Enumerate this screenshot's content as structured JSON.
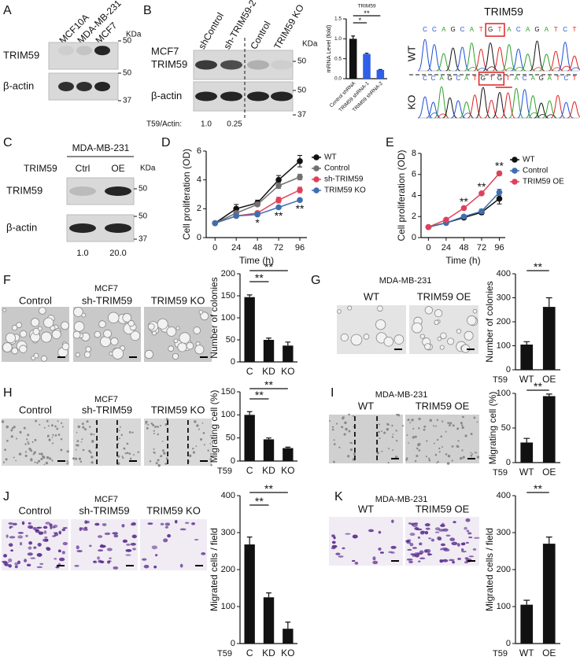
{
  "panel_labels": [
    "A",
    "B",
    "C",
    "D",
    "E",
    "F",
    "G",
    "H",
    "I",
    "J",
    "K"
  ],
  "blot_a": {
    "lanes": [
      "MCF10A",
      "MDA-MB-231",
      "MCF7"
    ],
    "kda": "KDa",
    "bands": [
      "TRIM59",
      "β-actin"
    ],
    "markers": [
      "50",
      "50",
      "37"
    ]
  },
  "blot_b": {
    "cell_line": "MCF7",
    "lanes": [
      "shControl",
      "sh-TRIM59-2",
      "Control",
      "TRIM59 KO"
    ],
    "kda": "KDa",
    "bands": [
      "TRIM59",
      "β-actin"
    ],
    "markers": [
      "50",
      "50",
      "37"
    ],
    "ratio_label": "T59/Actin:",
    "ratios": [
      "1.0",
      "0.25"
    ]
  },
  "blot_c": {
    "cell_line": "MDA-MB-231",
    "group_label": "TRIM59",
    "lanes": [
      "Ctrl",
      "OE"
    ],
    "kda": "KDa",
    "bands": [
      "TRIM59",
      "β-actin"
    ],
    "markers": [
      "50",
      "50",
      "37"
    ],
    "ratios": [
      "1.0",
      "20.0"
    ]
  },
  "sequencing": {
    "title": "TRIM59",
    "rows": [
      "WT",
      "KO"
    ],
    "wt_sequence": [
      "C",
      "C",
      "A",
      "G",
      "C",
      "A",
      "T",
      "G",
      "T",
      "A",
      "C",
      "A",
      "G",
      "A",
      "T",
      "C",
      "T"
    ],
    "ko_sequence": [
      "C",
      "C",
      "A",
      "G",
      "C",
      "A",
      "T",
      "G",
      "T",
      "G",
      "T",
      "A",
      "C",
      "A",
      "G",
      "A",
      "T",
      "C",
      "T"
    ]
  },
  "images": [
    {
      "cell_line": "MCF7",
      "conditions": [
        "Control",
        "sh-TRIM59",
        "TRIM59 KO"
      ]
    },
    {
      "cell_line": "MDA-MB-231",
      "conditions": [
        "WT",
        "TRIM59 OE"
      ]
    },
    {
      "cell_line": "MCF7",
      "conditions": [
        "Control",
        "sh-TRIM59",
        "TRIM59 KO"
      ]
    },
    {
      "cell_line": "MDA-MB-231",
      "conditions": [
        "WT",
        "TRIM59 OE"
      ]
    },
    {
      "cell_line": "MCF7",
      "conditions": [
        "Control",
        "sh-TRIM59",
        "TRIM59 KO"
      ]
    },
    {
      "cell_line": "MDA-MB-231",
      "conditions": [
        "WT",
        "TRIM59 OE"
      ]
    }
  ],
  "chart_data": [
    {
      "type": "bar",
      "title": "TRIM59",
      "ylabel": "mRNA Level (fold)",
      "categories": [
        "Control shRNA",
        "TRIM59 shRNA-1",
        "TRIM59 shRNA-2"
      ],
      "values": [
        1.0,
        0.62,
        0.22
      ],
      "errors": [
        0.07,
        0.02,
        0.01
      ],
      "colors": [
        "#111111",
        "#2f5ee8",
        "#2f5ee8"
      ],
      "ylim": [
        0,
        1.5
      ],
      "yticks": [
        {
          "value": 0,
          "label": "0.0"
        },
        0.5,
        {
          "value": 1,
          "label": "1.0"
        },
        1.5
      ],
      "rotate_labels": true,
      "annotations": [
        {
          "text": "*",
          "from": 0,
          "to": 1
        },
        {
          "text": "**",
          "from": 0,
          "to": 2
        }
      ]
    },
    {
      "type": "line",
      "ylabel": "Cell proliferation (OD)",
      "xlabel": "Time (h)",
      "x": [
        0,
        24,
        48,
        72,
        96
      ],
      "xlim": [
        -10,
        104
      ],
      "xticks": [
        0,
        24,
        48,
        72,
        96
      ],
      "ylim": [
        0,
        6
      ],
      "yticks": [
        0,
        2,
        4,
        6
      ],
      "legend": "right",
      "series": [
        {
          "name": "WT",
          "color": "#111111",
          "values": [
            1,
            2,
            2.4,
            4,
            5.3
          ],
          "errors": [
            0.05,
            0.3,
            0.2,
            0.3,
            0.4
          ]
        },
        {
          "name": "Control",
          "color": "#707070",
          "values": [
            1,
            1.7,
            2.3,
            3.6,
            4.2
          ],
          "errors": [
            0.05,
            0.1,
            0.1,
            0.2,
            0.2
          ]
        },
        {
          "name": "sh-TRIM59",
          "color": "#e0405a",
          "values": [
            1,
            1.5,
            1.7,
            2.6,
            3.3
          ],
          "errors": [
            0.05,
            0.1,
            0.1,
            0.2,
            0.2
          ]
        },
        {
          "name": "TRIM59 KO",
          "color": "#3d6fb0",
          "values": [
            1,
            1.5,
            1.6,
            2.1,
            2.6
          ],
          "errors": [
            0.05,
            0.1,
            0.1,
            0.1,
            0.1
          ]
        }
      ],
      "annotations": [
        {
          "text": "*",
          "x": 48
        },
        {
          "text": "**",
          "x": 72
        },
        {
          "text": "**",
          "x": 96
        }
      ],
      "annotation_side": "below"
    },
    {
      "type": "line",
      "ylabel": "Cell proliferation (OD)",
      "xlabel": "Time (h)",
      "x": [
        0,
        24,
        48,
        72,
        96
      ],
      "xlim": [
        -10,
        104
      ],
      "xticks": [
        0,
        24,
        48,
        72,
        96
      ],
      "ylim": [
        0,
        8
      ],
      "yticks": [
        0,
        2,
        4,
        6,
        8
      ],
      "legend": "right",
      "series": [
        {
          "name": "WT",
          "color": "#111111",
          "values": [
            1,
            1.4,
            1.9,
            2.4,
            3.7
          ],
          "errors": [
            0.05,
            0.1,
            0.1,
            0.2,
            0.5
          ]
        },
        {
          "name": "Control",
          "color": "#3d6fb0",
          "values": [
            1,
            1.4,
            2.0,
            2.5,
            4.3
          ],
          "errors": [
            0.05,
            0.1,
            0.1,
            0.2,
            0.3
          ]
        },
        {
          "name": "TRIM59 OE",
          "color": "#e0405a",
          "values": [
            1,
            1.7,
            2.8,
            4.2,
            6.1
          ],
          "errors": [
            0.05,
            0.1,
            0.1,
            0.1,
            0.2
          ]
        }
      ],
      "annotations": [
        {
          "text": "**",
          "x": 48
        },
        {
          "text": "**",
          "x": 72
        },
        {
          "text": "**",
          "x": 96
        }
      ],
      "annotation_side": "above"
    },
    {
      "type": "bar",
      "ylabel": "Number of colonies",
      "categories": [
        "C",
        "KD",
        "KO"
      ],
      "values": [
        147,
        50,
        37
      ],
      "errors": [
        5,
        4,
        8
      ],
      "color": "#111111",
      "ylim": [
        0,
        200
      ],
      "yticks": [
        0,
        50,
        100,
        150,
        200
      ],
      "annotations": [
        {
          "text": "**",
          "from": 0,
          "to": 1
        },
        {
          "text": "**",
          "from": 0,
          "to": 2
        }
      ]
    },
    {
      "type": "bar",
      "ylabel": "Number of colonies",
      "xlabel": "T59",
      "categories": [
        "WT",
        "OE"
      ],
      "values": [
        105,
        262
      ],
      "errors": [
        12,
        38
      ],
      "color": "#111111",
      "ylim": [
        0,
        400
      ],
      "yticks": [
        0,
        100,
        200,
        300,
        400
      ],
      "annotations": [
        {
          "text": "**",
          "from": 0,
          "to": 1
        }
      ]
    },
    {
      "type": "bar",
      "ylabel": "Migrating cell (%)",
      "xlabel": "T59",
      "categories": [
        "C",
        "KD",
        "KO"
      ],
      "values": [
        100,
        47,
        28
      ],
      "errors": [
        7,
        3,
        2
      ],
      "color": "#111111",
      "ylim": [
        0,
        150
      ],
      "yticks": [
        0,
        50,
        100,
        150
      ],
      "annotations": [
        {
          "text": "**",
          "from": 0,
          "to": 1
        },
        {
          "text": "**",
          "from": 0,
          "to": 2
        }
      ]
    },
    {
      "type": "bar",
      "ylabel": "Migrating cell (%)",
      "xlabel": "T59",
      "categories": [
        "WT",
        "OE"
      ],
      "values": [
        29,
        96
      ],
      "errors": [
        6,
        3
      ],
      "color": "#111111",
      "ylim": [
        0,
        100
      ],
      "yticks": [
        0,
        50,
        100
      ],
      "annotations": [
        {
          "text": "**",
          "from": 0,
          "to": 1
        }
      ]
    },
    {
      "type": "bar",
      "ylabel": "Migrated cells / field",
      "xlabel": "T59",
      "categories": [
        "C",
        "KD",
        "KO"
      ],
      "values": [
        268,
        125,
        40
      ],
      "errors": [
        20,
        12,
        18
      ],
      "color": "#111111",
      "ylim": [
        0,
        400
      ],
      "yticks": [
        0,
        100,
        200,
        300,
        400
      ],
      "annotations": [
        {
          "text": "**",
          "from": 0,
          "to": 1
        },
        {
          "text": "**",
          "from": 0,
          "to": 2
        }
      ]
    },
    {
      "type": "bar",
      "ylabel": "Migrated cells / field",
      "xlabel": "T59",
      "categories": [
        "WT",
        "OE"
      ],
      "values": [
        105,
        270
      ],
      "errors": [
        12,
        18
      ],
      "color": "#111111",
      "ylim": [
        0,
        400
      ],
      "yticks": [
        0,
        100,
        200,
        300,
        400
      ],
      "annotations": [
        {
          "text": "**",
          "from": 0,
          "to": 1
        }
      ]
    }
  ]
}
